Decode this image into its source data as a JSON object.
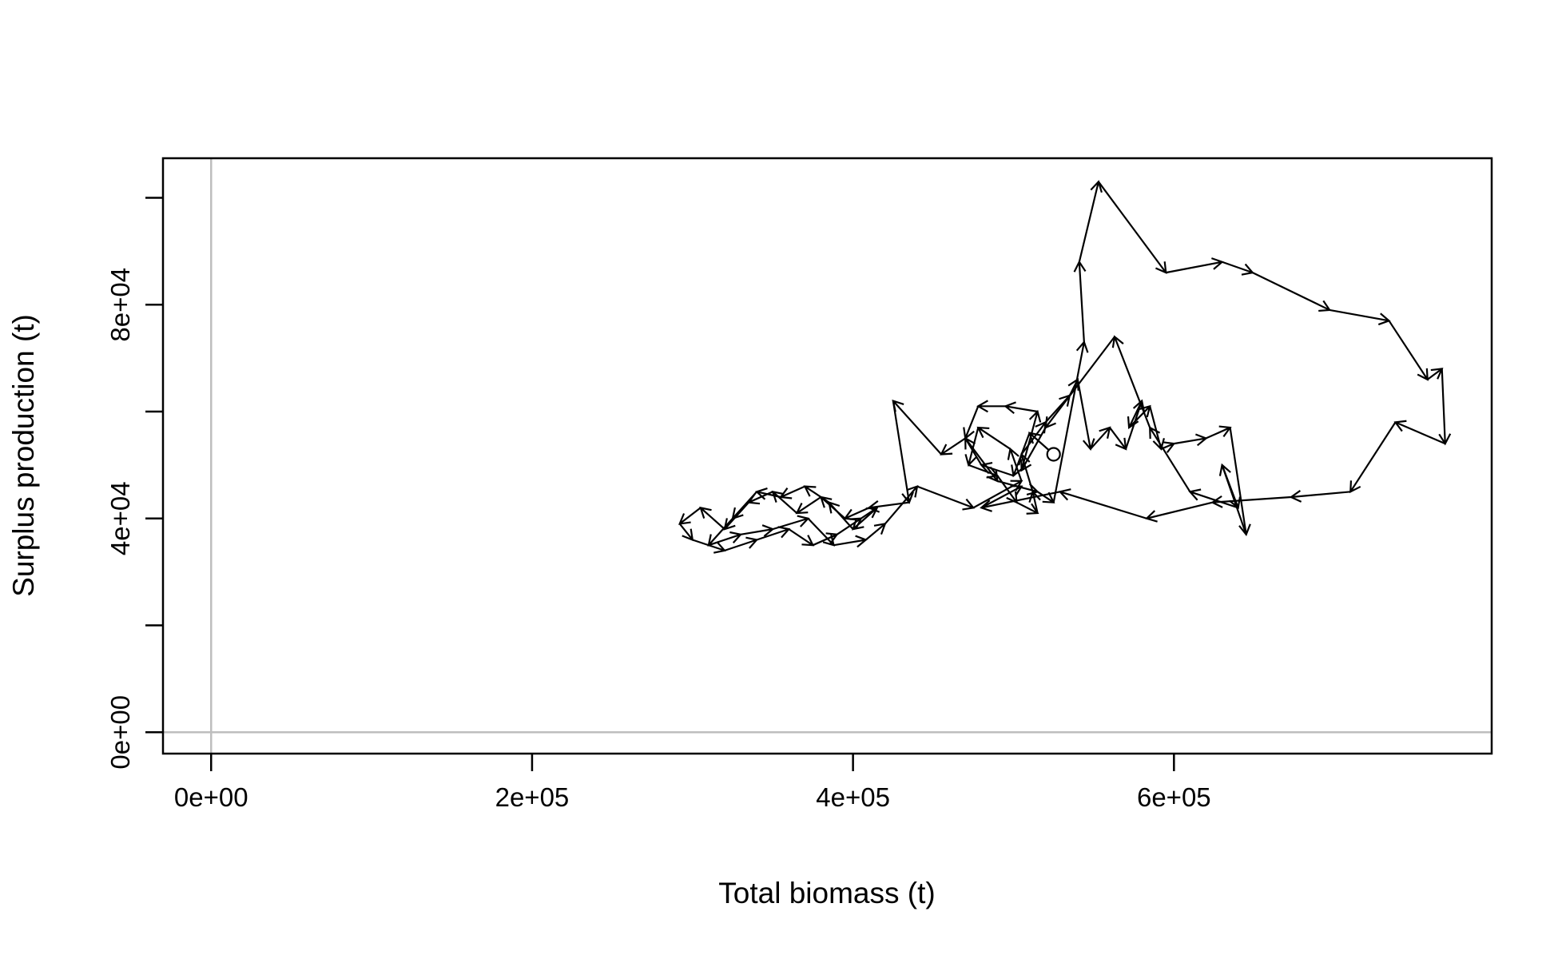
{
  "chart_data": {
    "type": "line",
    "x_label": "Total biomass (t)",
    "y_label": "Surplus production (t)",
    "xlim": [
      -30000,
      798000
    ],
    "ylim": [
      -4000,
      107400
    ],
    "xticks": [
      {
        "value": 0,
        "label": "0e+00"
      },
      {
        "value": 200000,
        "label": "2e+05"
      },
      {
        "value": 400000,
        "label": "4e+05"
      },
      {
        "value": 600000,
        "label": "6e+05"
      }
    ],
    "yticks": [
      {
        "value": 0,
        "label": "0e+00"
      },
      {
        "value": 20000
      },
      {
        "value": 40000,
        "label": "4e+04"
      },
      {
        "value": 60000
      },
      {
        "value": 80000,
        "label": "8e+04"
      },
      {
        "value": 100000
      }
    ],
    "reference_lines": {
      "x": 0,
      "y": 0,
      "color": "#bebebe"
    },
    "color": "#000000",
    "arrows": true,
    "start_marker": "circle",
    "x": [
      525000,
      510000,
      500000,
      480000,
      470000,
      455000,
      425000,
      435000,
      410000,
      395000,
      380000,
      365000,
      350000,
      335000,
      320000,
      305000,
      292000,
      300000,
      320000,
      340000,
      360000,
      375000,
      390000,
      405000,
      415000,
      400000,
      385000,
      370000,
      355000,
      340000,
      325000,
      310000,
      330000,
      350000,
      372000,
      388000,
      408000,
      420000,
      440000,
      475000,
      505000,
      498000,
      478000,
      472000,
      490000,
      502000,
      515000,
      512000,
      505000,
      520000,
      535000,
      540000,
      548000,
      560000,
      570000,
      580000,
      572000,
      585000,
      592000,
      600000,
      620000,
      635000,
      645000,
      630000,
      640000,
      610000,
      585000,
      563000,
      520000,
      505000,
      515000,
      495000,
      478000,
      470000,
      490000,
      515000,
      525000,
      544000,
      541000,
      553000,
      595000,
      630000,
      649000,
      697000,
      734000,
      758000,
      767000,
      769000,
      738000,
      710000,
      673000,
      624000,
      583000,
      529000,
      480000,
      505000
    ],
    "values": [
      52000,
      56000,
      48000,
      50000,
      55000,
      52000,
      62000,
      43000,
      42000,
      40000,
      44000,
      41000,
      45000,
      43000,
      38000,
      42000,
      39000,
      36000,
      34000,
      36000,
      38000,
      35000,
      37000,
      40000,
      42000,
      38000,
      43000,
      46000,
      44000,
      45000,
      40000,
      35000,
      37000,
      38000,
      40000,
      35000,
      36000,
      39000,
      46000,
      42000,
      47000,
      53000,
      57000,
      50000,
      48000,
      43000,
      41000,
      45000,
      52000,
      58000,
      63000,
      66000,
      53000,
      57000,
      53000,
      62000,
      57000,
      61000,
      53000,
      54000,
      55000,
      57000,
      37000,
      50000,
      42000,
      45000,
      57000,
      74000,
      57000,
      49000,
      60000,
      61000,
      61000,
      55000,
      47000,
      45000,
      43000,
      73000,
      88000,
      103000,
      86000,
      88000,
      86000,
      79000,
      77000,
      66000,
      68000,
      54000,
      58000,
      45000,
      44000,
      43000,
      40000,
      45000,
      42000,
      46000
    ]
  }
}
